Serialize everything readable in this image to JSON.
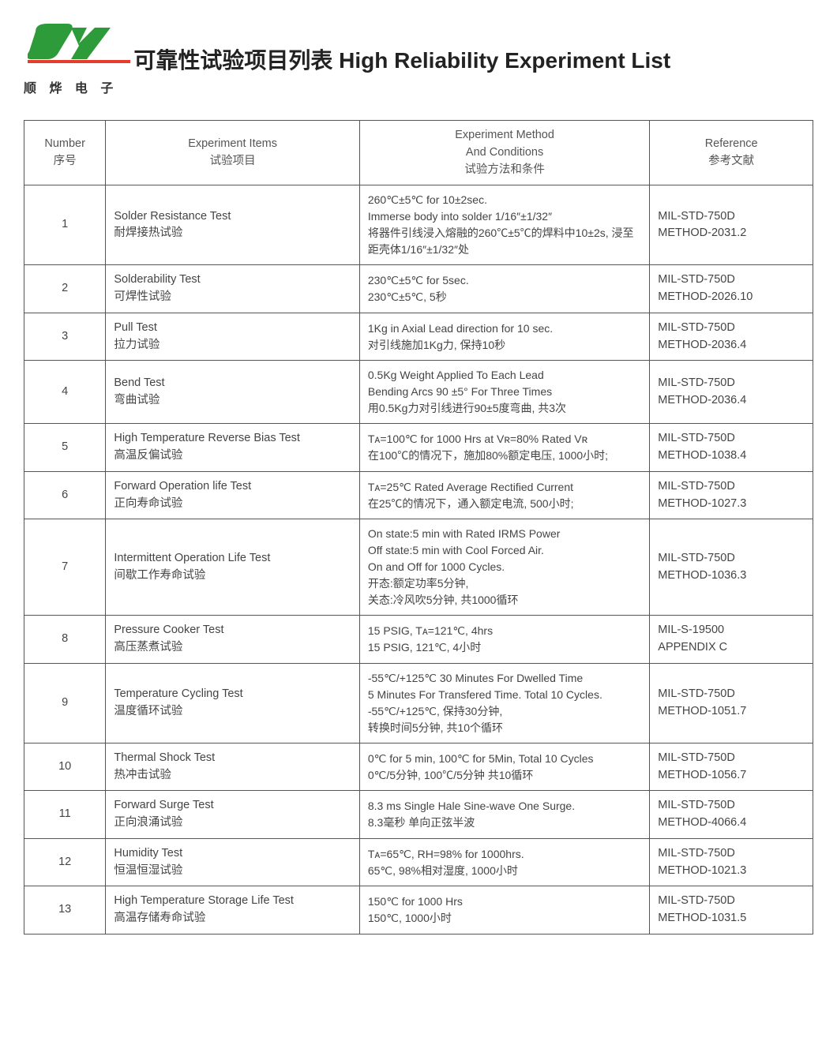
{
  "logo": {
    "brand_cn": "顺 烨 电 子",
    "green": "#2e9b3a",
    "red": "#e63c2e"
  },
  "title": "可靠性试验项目列表 High Reliability Experiment List",
  "headers": {
    "number_en": "Number",
    "number_cn": "序号",
    "items_en": "Experiment Items",
    "items_cn": "试验项目",
    "method_en1": "Experiment Method",
    "method_en2": "And Conditions",
    "method_cn": "试验方法和条件",
    "ref_en": "Reference",
    "ref_cn": "参考文献"
  },
  "rows": [
    {
      "num": "1",
      "item_en": "Solder Resistance Test",
      "item_cn": "耐焊接热试验",
      "method": "260℃±5℃ for 10±2sec.\nImmerse body into solder 1/16″±1/32″\n将器件引线浸入熔融的260℃±5℃的焊料中10±2s, 浸至距壳体1/16″±1/32″处",
      "ref": "MIL-STD-750D\nMETHOD-2031.2"
    },
    {
      "num": "2",
      "item_en": "Solderability Test",
      "item_cn": "可焊性试验",
      "method": "230℃±5℃ for 5sec.\n230℃±5℃, 5秒",
      "ref": "MIL-STD-750D\nMETHOD-2026.10"
    },
    {
      "num": "3",
      "item_en": "Pull Test",
      "item_cn": "拉力试验",
      "method": "1Kg in Axial Lead direction for 10 sec.\n对引线施加1Kg力, 保持10秒",
      "ref": "MIL-STD-750D\nMETHOD-2036.4"
    },
    {
      "num": "4",
      "item_en": "Bend Test",
      "item_cn": "弯曲试验",
      "method": "0.5Kg Weight Applied To Each Lead\nBending Arcs 90 ±5° For Three Times\n用0.5Kg力对引线进行90±5度弯曲, 共3次",
      "ref": "MIL-STD-750D\nMETHOD-2036.4"
    },
    {
      "num": "5",
      "item_en": "High Temperature Reverse Bias Test",
      "item_cn": "高温反偏试验",
      "method": "Tᴀ=100℃ for 1000 Hrs at Vʀ=80% Rated Vʀ\n在100℃的情况下，施加80%额定电压, 1000小时;",
      "ref": "MIL-STD-750D\nMETHOD-1038.4"
    },
    {
      "num": "6",
      "item_en": "Forward Operation life Test",
      "item_cn": "正向寿命试验",
      "method": "Tᴀ=25℃ Rated Average Rectified Current\n在25℃的情况下，通入额定电流, 500小时;",
      "ref": "MIL-STD-750D\nMETHOD-1027.3"
    },
    {
      "num": "7",
      "item_en": "Intermittent Operation Life Test",
      "item_cn": "间歇工作寿命试验",
      "method": "On state:5 min with Rated IRMS Power\nOff state:5 min with Cool Forced Air.\nOn and Off for 1000 Cycles.\n开态:额定功率5分钟,\n关态:冷风吹5分钟, 共1000循环",
      "ref": "MIL-STD-750D\nMETHOD-1036.3"
    },
    {
      "num": "8",
      "item_en": "Pressure Cooker Test",
      "item_cn": "高压蒸煮试验",
      "method": "15 PSIG, Tᴀ=121℃, 4hrs\n15 PSIG, 121℃, 4小时",
      "ref": "MIL-S-19500\nAPPENDIX C"
    },
    {
      "num": "9",
      "item_en": "Temperature Cycling Test",
      "item_cn": "温度循环试验",
      "method": "-55℃/+125℃ 30 Minutes For Dwelled Time\n5 Minutes For Transfered Time. Total 10 Cycles.\n-55℃/+125℃, 保持30分钟,\n转换时间5分钟, 共10个循环",
      "ref": "MIL-STD-750D\nMETHOD-1051.7"
    },
    {
      "num": "10",
      "item_en": "Thermal Shock Test",
      "item_cn": "热冲击试验",
      "method": "0℃ for 5 min, 100℃ for 5Min, Total 10 Cycles\n0℃/5分钟, 100℃/5分钟 共10循环",
      "ref": "MIL-STD-750D\nMETHOD-1056.7"
    },
    {
      "num": "11",
      "item_en": "Forward Surge Test",
      "item_cn": "正向浪涌试验",
      "method": "8.3 ms Single Hale Sine-wave One Surge.\n8.3毫秒 单向正弦半波",
      "ref": "MIL-STD-750D\nMETHOD-4066.4"
    },
    {
      "num": "12",
      "item_en": "Humidity Test",
      "item_cn": "恒温恒湿试验",
      "method": "Tᴀ=65℃, RH=98% for 1000hrs.\n65℃, 98%相对湿度, 1000小时",
      "ref": "MIL-STD-750D\nMETHOD-1021.3"
    },
    {
      "num": "13",
      "item_en": "High Temperature Storage Life Test",
      "item_cn": "高温存储寿命试验",
      "method": "150℃ for 1000 Hrs\n150℃, 1000小时",
      "ref": "MIL-STD-750D\nMETHOD-1031.5"
    }
  ]
}
